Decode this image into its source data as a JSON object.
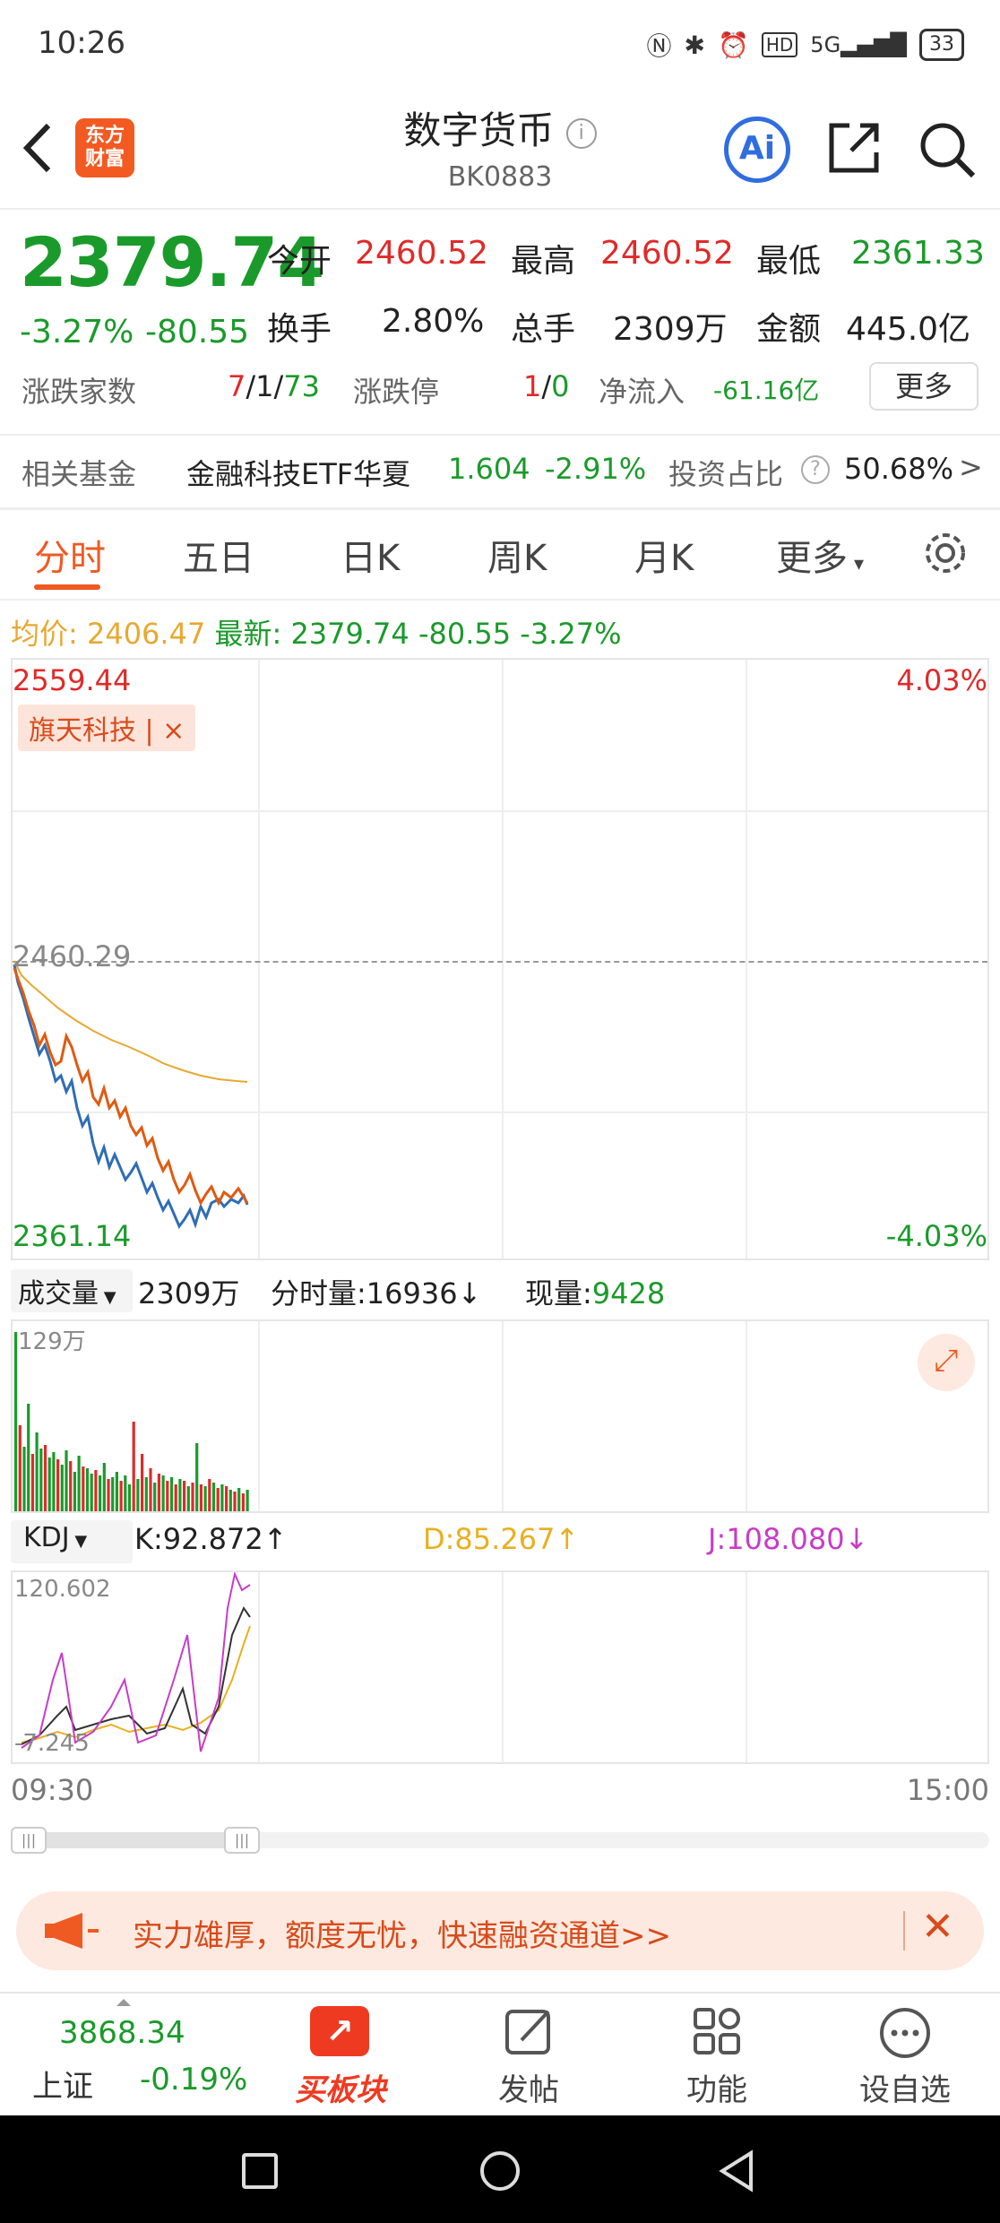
{
  "status_bar": {
    "time": "10:26",
    "icons": [
      "nfc-icon",
      "bluetooth-icon",
      "alarm-icon",
      "hd-icon",
      "5g-signal-icon"
    ],
    "battery": "33"
  },
  "header": {
    "logo_text": "东方\n财富",
    "title": "数字货币",
    "code": "BK0883"
  },
  "quote": {
    "price": "2379.74",
    "change_pct": "-3.27%",
    "change": "-80.55",
    "open_label": "今开",
    "open": "2460.52",
    "high_label": "最高",
    "high": "2460.52",
    "low_label": "最低",
    "low": "2361.33",
    "turnover_label": "换手",
    "turnover": "2.80%",
    "volume_label": "总手",
    "volume": "2309万",
    "amount_label": "金额",
    "amount": "445.0亿",
    "adv_label": "涨跌家数",
    "adv_up": "7",
    "adv_flat": "1",
    "adv_down": "73",
    "limit_label": "涨跌停",
    "limit_up": "1",
    "limit_down": "0",
    "netflow_label": "净流入",
    "netflow": "-61.16亿",
    "more_label": "更多"
  },
  "fund": {
    "label": "相关基金",
    "name": "金融科技ETF华夏",
    "price": "1.604",
    "pct": "-2.91%",
    "ratio_label": "投资占比",
    "ratio": "50.68%"
  },
  "tabs": [
    {
      "label": "分时"
    },
    {
      "label": "五日"
    },
    {
      "label": "日K"
    },
    {
      "label": "周K"
    },
    {
      "label": "月K"
    },
    {
      "label": "更多"
    }
  ],
  "chart_info": {
    "avg_label": "均价:",
    "avg": "2406.47",
    "latest_label": "最新:",
    "latest": "2379.74",
    "change": "-80.55",
    "pct": "-3.27%"
  },
  "price_chart": {
    "top_price": "2559.44",
    "top_pct": "4.03%",
    "mid_price": "2460.29",
    "bottom_price": "2361.14",
    "bottom_pct": "-4.03%",
    "tag": "旗天科技 | ×"
  },
  "volume_panel": {
    "selector": "成交量",
    "total": "2309万",
    "minute_vol_label": "分时量:",
    "minute_vol": "16936↓",
    "current_label": "现量:",
    "current": "9428",
    "max_label": "129万"
  },
  "kdj_panel": {
    "selector": "KDJ",
    "k": "K:92.872↑",
    "d": "D:85.267↑",
    "j": "J:108.080↓",
    "top": "120.602",
    "bottom": "-7.245"
  },
  "time_axis": {
    "start": "09:30",
    "end": "15:00"
  },
  "banner": {
    "text": "实力雄厚，额度无忧，快速融资通道>>"
  },
  "bottom_nav": {
    "index_value": "3868.34",
    "index_name": "上证",
    "index_pct": "-0.19%",
    "items": [
      {
        "label": "买板块"
      },
      {
        "label": "发帖"
      },
      {
        "label": "功能"
      },
      {
        "label": "设自选"
      }
    ]
  },
  "colors": {
    "up": "#e02a2a",
    "down": "#1a9a2a",
    "accent": "#ef5a22",
    "avg_line": "#e8a830",
    "price_line": "#2f6db5"
  }
}
